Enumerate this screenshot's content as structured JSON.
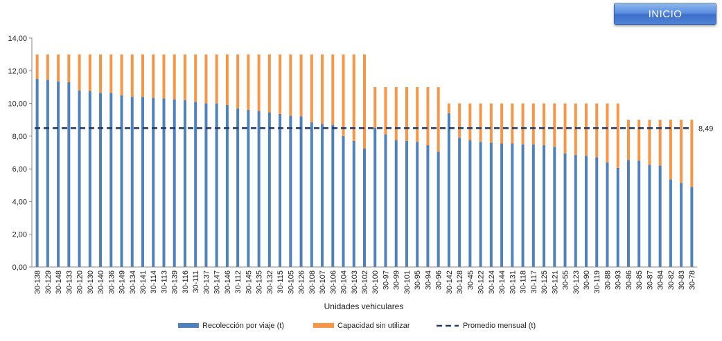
{
  "button": {
    "label": "INICIO",
    "color": "#4f84d8"
  },
  "colors": {
    "series1": "#4f81bd",
    "series2": "#f79646",
    "average": "#1f3864"
  },
  "chart_data": {
    "type": "bar",
    "stacked": true,
    "xlabel": "Unidades vehiculares",
    "ylabel": "",
    "ylim": [
      0,
      14
    ],
    "yticks": [
      "0,00",
      "2,00",
      "4,00",
      "6,00",
      "8,00",
      "10,00",
      "12,00",
      "14,00"
    ],
    "grid": false,
    "legend_position": "bottom",
    "categories": [
      "30-138",
      "30-129",
      "30-148",
      "30-133",
      "30-120",
      "30-130",
      "30-140",
      "30-136",
      "30-149",
      "30-134",
      "30-141",
      "30-114",
      "30-113",
      "30-139",
      "30-116",
      "30-111",
      "30-137",
      "30-147",
      "30-146",
      "30-112",
      "30-145",
      "30-135",
      "30-132",
      "30-115",
      "30-105",
      "30-126",
      "30-108",
      "30-107",
      "30-106",
      "30-104",
      "30-103",
      "30-102",
      "30-100",
      "30-97",
      "30-99",
      "30-101",
      "30-95",
      "30-94",
      "30-96",
      "30-142",
      "30-128",
      "30-45",
      "30-122",
      "30-124",
      "30-144",
      "30-131",
      "30-118",
      "30-117",
      "30-125",
      "30-121",
      "30-55",
      "30-123",
      "30-90",
      "30-119",
      "30-88",
      "30-93",
      "30-86",
      "30-85",
      "30-87",
      "30-84",
      "30-82",
      "30-83",
      "30-78"
    ],
    "series": [
      {
        "name": "Recolección por viaje (t)",
        "values": [
          11.5,
          11.45,
          11.35,
          11.3,
          10.8,
          10.75,
          10.65,
          10.65,
          10.5,
          10.4,
          10.4,
          10.35,
          10.3,
          10.25,
          10.2,
          10.1,
          10.0,
          10.0,
          9.9,
          9.7,
          9.6,
          9.55,
          9.45,
          9.35,
          9.25,
          9.2,
          8.85,
          8.75,
          8.7,
          8.0,
          7.7,
          7.25,
          8.5,
          8.1,
          7.75,
          7.7,
          7.65,
          7.45,
          7.05,
          9.4,
          7.9,
          7.75,
          7.65,
          7.6,
          7.55,
          7.55,
          7.5,
          7.5,
          7.45,
          7.35,
          6.95,
          6.85,
          6.8,
          6.7,
          6.4,
          6.05,
          6.55,
          6.5,
          6.25,
          6.2,
          5.35,
          5.15,
          4.9
        ]
      },
      {
        "name": "Capacidad sin utilizar",
        "values": [
          1.5,
          1.55,
          1.65,
          1.7,
          2.2,
          2.25,
          2.35,
          2.35,
          2.5,
          2.6,
          2.6,
          2.65,
          2.7,
          2.75,
          2.8,
          2.9,
          3.0,
          3.0,
          3.1,
          3.3,
          3.4,
          3.45,
          3.55,
          3.65,
          3.75,
          3.8,
          4.15,
          4.25,
          4.3,
          5.0,
          5.3,
          5.75,
          2.5,
          2.9,
          3.25,
          3.3,
          3.35,
          3.55,
          3.95,
          0.6,
          2.1,
          2.25,
          2.35,
          2.4,
          2.45,
          2.45,
          2.5,
          2.5,
          2.55,
          2.65,
          3.05,
          3.15,
          3.2,
          3.3,
          3.6,
          3.95,
          2.45,
          2.5,
          2.75,
          2.8,
          3.65,
          3.85,
          4.1
        ]
      }
    ],
    "average": {
      "name": "Promedio mensual (t)",
      "value": 8.49,
      "label": "8,49"
    }
  }
}
